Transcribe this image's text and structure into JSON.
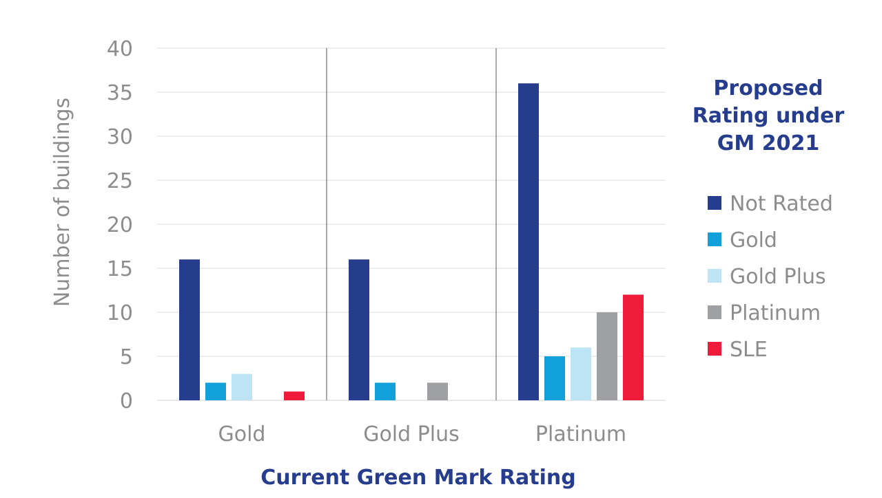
{
  "chart_data": {
    "type": "bar",
    "categories": [
      "Gold",
      "Gold Plus",
      "Platinum"
    ],
    "series": [
      {
        "name": "Not Rated",
        "color": "#263c8c",
        "values": [
          16,
          16,
          36
        ]
      },
      {
        "name": "Gold",
        "color": "#12a0db",
        "values": [
          2,
          2,
          5
        ]
      },
      {
        "name": "Gold Plus",
        "color": "#bde4f4",
        "values": [
          3,
          0,
          6
        ]
      },
      {
        "name": "Platinum",
        "color": "#9ea0a3",
        "values": [
          0,
          2,
          10
        ]
      },
      {
        "name": "SLE",
        "color": "#ee1c3a",
        "values": [
          1,
          0,
          12
        ]
      }
    ],
    "xlabel": "Current Green Mark Rating",
    "ylabel": "Number of buildings",
    "ylim": [
      0,
      40
    ],
    "yticks": [
      0,
      5,
      10,
      15,
      20,
      25,
      30,
      35,
      40
    ],
    "legend": {
      "title_lines": [
        "Proposed",
        "Rating under",
        "GM 2021"
      ],
      "placement": "right"
    },
    "grid": true
  }
}
